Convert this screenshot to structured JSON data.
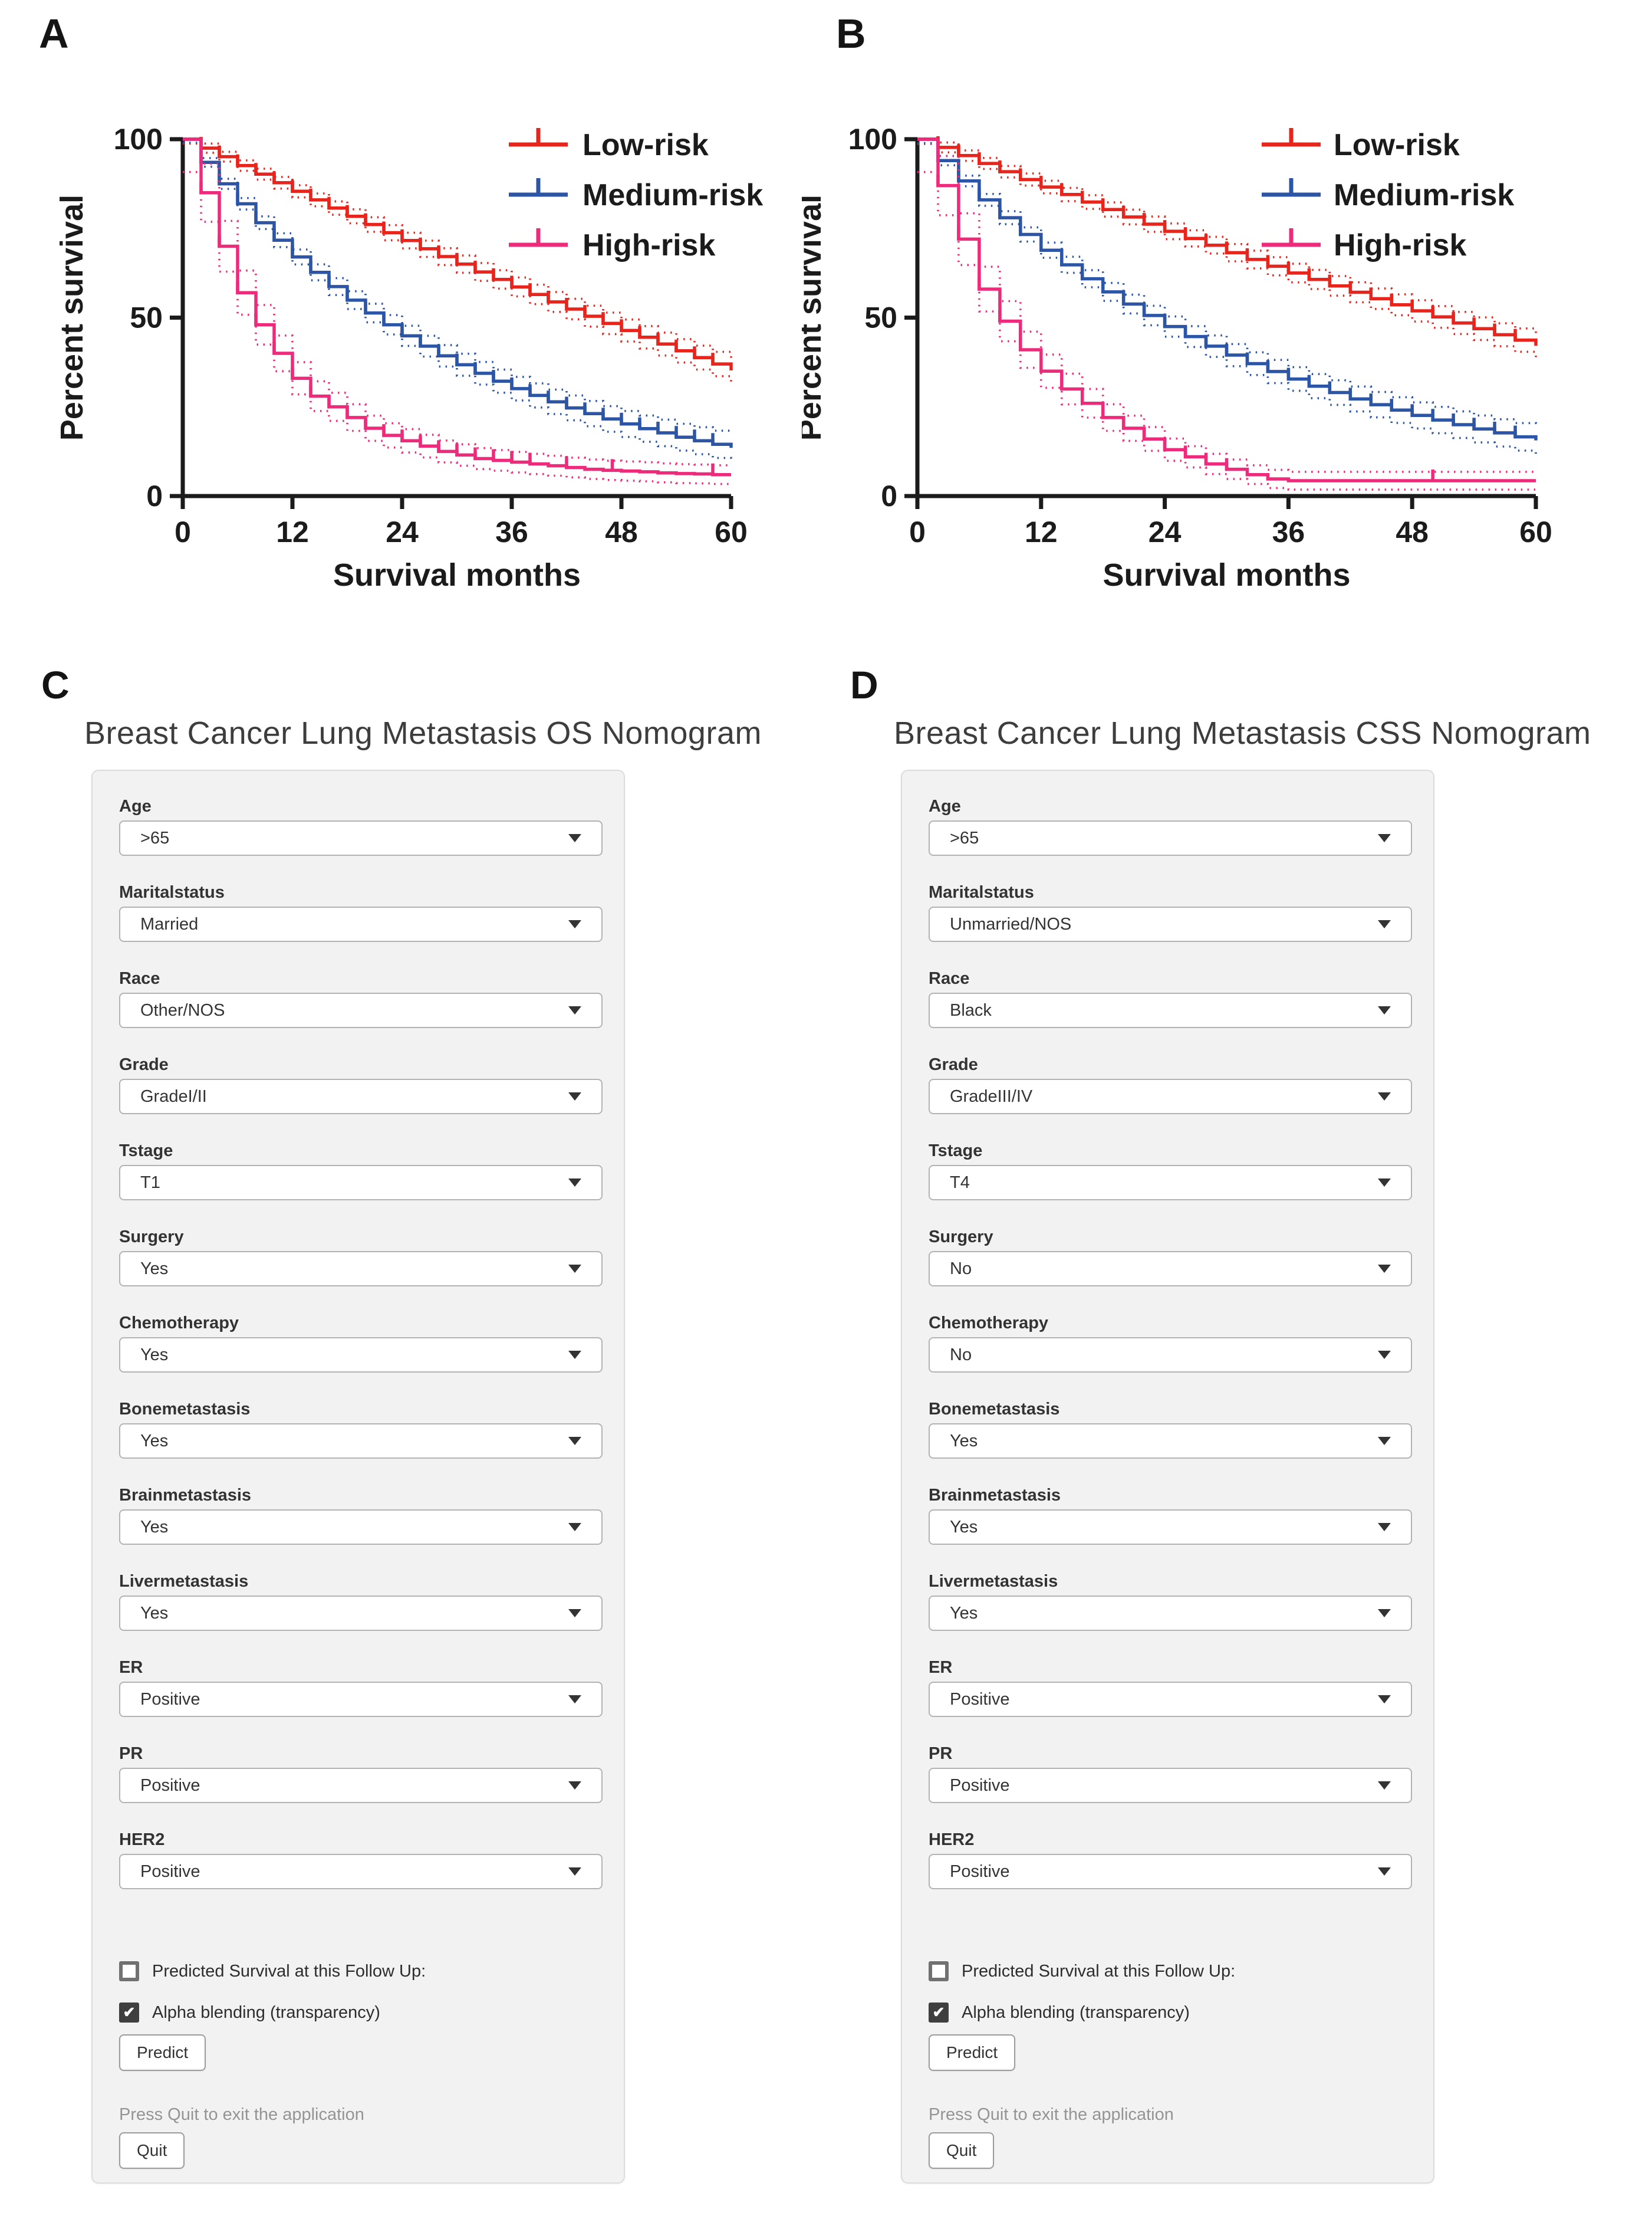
{
  "page": {
    "background": "#ffffff"
  },
  "chart_data": {
    "type": "line",
    "subtype": "kaplan_meier_step_with_ci",
    "charts": [
      {
        "panel_label": "A",
        "xlabel": "Survival months",
        "ylabel": "Percent survival",
        "xlim": [
          0,
          60
        ],
        "ylim": [
          0,
          100
        ],
        "x_ticks": [
          0,
          12,
          24,
          36,
          48,
          60
        ],
        "y_ticks": [
          0,
          50,
          100
        ],
        "grid": false,
        "legend_position": "top-right",
        "months": [
          0,
          2,
          4,
          6,
          8,
          10,
          12,
          14,
          16,
          18,
          20,
          22,
          24,
          26,
          28,
          30,
          32,
          34,
          36,
          38,
          40,
          42,
          44,
          46,
          48,
          50,
          52,
          54,
          56,
          58,
          60
        ],
        "series": [
          {
            "name": "Low-risk",
            "color": "#e7251d",
            "values": [
              100,
              97.5,
              95.1,
              92.6,
              90.2,
              87.8,
              85.4,
              83,
              80.7,
              78.4,
              76.1,
              73.8,
              71.6,
              69.3,
              67.1,
              65,
              62.8,
              60.7,
              58.6,
              56.5,
              54.4,
              52.4,
              50.4,
              48.4,
              46.4,
              44.5,
              42.6,
              40.7,
              38.8,
              37,
              35.2
            ],
            "censor_months": [
              2,
              4,
              6,
              8,
              10,
              12,
              14,
              16,
              18,
              20,
              22,
              24,
              26,
              28,
              30,
              32,
              34,
              36,
              38,
              40,
              42,
              44,
              46,
              48,
              50,
              52,
              54,
              56,
              58
            ],
            "ci_params": {
              "base": 1.2,
              "v_coef": 0,
              "drop_coef": 0.035
            }
          },
          {
            "name": "Medium-risk",
            "color": "#2d55a5",
            "values": [
              100,
              93.5,
              87.5,
              81.9,
              76.6,
              71.7,
              67,
              62.7,
              58.7,
              54.9,
              51.3,
              48,
              44.9,
              42,
              39.3,
              36.8,
              34.4,
              32.2,
              30.1,
              28.2,
              26.4,
              24.7,
              23.1,
              21.6,
              20.2,
              18.9,
              17.7,
              16.5,
              15.5,
              14.5,
              13.5
            ],
            "censor_months": [
              2,
              4,
              6,
              8,
              10,
              12,
              14,
              16,
              18,
              20,
              22,
              24,
              26,
              28,
              30,
              32,
              34,
              36,
              38,
              40,
              42,
              44,
              46,
              48,
              50,
              52,
              54,
              56,
              58
            ],
            "ci_params": {
              "base": 1.0,
              "v_coef": 0,
              "drop_coef": 0.033
            }
          },
          {
            "name": "High-risk",
            "color": "#ee2a7b",
            "values": [
              100,
              85,
              70,
              57,
              48,
              40,
              33,
              28,
              25,
              22,
              19,
              17,
              15.5,
              14,
              12.5,
              11.5,
              10.5,
              10,
              9.5,
              9,
              8.5,
              8,
              7.5,
              7.2,
              7,
              6.8,
              6.5,
              6.3,
              6.2,
              6,
              6
            ],
            "censor_months": [
              2,
              4,
              6,
              8,
              10,
              12,
              14,
              16,
              18,
              20,
              22,
              24,
              26,
              28,
              30,
              32,
              34,
              36,
              38,
              42,
              47,
              58
            ],
            "ci_params": {
              "base": 2.2,
              "v_coef": 0.07,
              "drop_coef": 0
            }
          }
        ]
      },
      {
        "panel_label": "B",
        "xlabel": "Survival months",
        "ylabel": "Percent survival",
        "xlim": [
          0,
          60
        ],
        "ylim": [
          0,
          100
        ],
        "x_ticks": [
          0,
          12,
          24,
          36,
          48,
          60
        ],
        "y_ticks": [
          0,
          50,
          100
        ],
        "grid": false,
        "legend_position": "top-right",
        "months": [
          0,
          2,
          4,
          6,
          8,
          10,
          12,
          14,
          16,
          18,
          20,
          22,
          24,
          26,
          28,
          30,
          32,
          34,
          36,
          38,
          40,
          42,
          44,
          46,
          48,
          50,
          52,
          54,
          56,
          58,
          60
        ],
        "series": [
          {
            "name": "Low-risk",
            "color": "#e7251d",
            "values": [
              100,
              97.7,
              95.4,
              93.2,
              90.9,
              88.7,
              86.6,
              84.5,
              82.4,
              80.3,
              78.2,
              76.2,
              74.2,
              72.2,
              70.3,
              68.2,
              66.3,
              64.4,
              62.5,
              60.7,
              58.9,
              57.1,
              55.3,
              53.6,
              51.9,
              50.2,
              48.5,
              46.9,
              45.2,
              43.7,
              42.1
            ],
            "censor_months": [
              2,
              4,
              6,
              8,
              10,
              12,
              14,
              16,
              18,
              20,
              22,
              24,
              26,
              28,
              30,
              32,
              34,
              36,
              38,
              40,
              42,
              44,
              46,
              48,
              50,
              52,
              54,
              56,
              58
            ],
            "ci_params": {
              "base": 1.3,
              "v_coef": 0,
              "drop_coef": 0.035
            }
          },
          {
            "name": "Medium-risk",
            "color": "#2d55a5",
            "values": [
              100,
              94,
              88.3,
              83,
              78,
              73.3,
              68.9,
              64.8,
              60.9,
              57.2,
              53.8,
              50.6,
              47.5,
              44.7,
              42,
              39.5,
              37.1,
              34.9,
              32.8,
              30.8,
              29,
              27.2,
              25.6,
              24.1,
              22.6,
              21.3,
              20,
              18.8,
              17.7,
              16.6,
              15.6
            ],
            "censor_months": [
              2,
              4,
              6,
              8,
              10,
              12,
              14,
              16,
              18,
              20,
              22,
              24,
              26,
              28,
              30,
              32,
              34,
              36,
              38,
              40,
              42,
              44,
              46,
              48,
              50,
              52,
              54,
              56,
              58
            ],
            "ci_params": {
              "base": 1.1,
              "v_coef": 0,
              "drop_coef": 0.033
            }
          },
          {
            "name": "High-risk",
            "color": "#ee2a7b",
            "values": [
              100,
              87,
              72,
              58,
              49,
              41,
              35,
              30,
              26,
              22,
              19,
              16,
              13,
              11,
              9,
              7.5,
              6,
              4.8,
              4.3,
              4.3,
              4.3,
              4.3,
              4.3,
              4.3,
              4.3,
              4.3,
              4.3,
              4.3,
              4.3,
              4.3,
              4.3
            ],
            "censor_months": [
              2,
              4,
              6,
              8,
              10,
              12,
              14,
              16,
              18,
              20,
              22,
              24,
              26,
              28,
              30,
              50
            ],
            "ci_params": {
              "base": 2.2,
              "v_coef": 0.07,
              "drop_coef": 0
            }
          }
        ]
      }
    ]
  },
  "nomograms": [
    {
      "panel_label": "C",
      "title": "Breast Cancer Lung Metastasis OS Nomogram",
      "fields": [
        {
          "label": "Age",
          "value": ">65"
        },
        {
          "label": "Maritalstatus",
          "value": "Married"
        },
        {
          "label": "Race",
          "value": "Other/NOS"
        },
        {
          "label": "Grade",
          "value": "GradeI/II"
        },
        {
          "label": "Tstage",
          "value": "T1"
        },
        {
          "label": "Surgery",
          "value": "Yes"
        },
        {
          "label": "Chemotherapy",
          "value": "Yes"
        },
        {
          "label": "Bonemetastasis",
          "value": "Yes"
        },
        {
          "label": "Brainmetastasis",
          "value": "Yes"
        },
        {
          "label": "Livermetastasis",
          "value": "Yes"
        },
        {
          "label": "ER",
          "value": "Positive"
        },
        {
          "label": "PR",
          "value": "Positive"
        },
        {
          "label": "HER2",
          "value": "Positive"
        }
      ],
      "checkboxes": [
        {
          "label": "Predicted Survival at this Follow Up:",
          "checked": false
        },
        {
          "label": "Alpha blending (transparency)",
          "checked": true
        }
      ],
      "predict_button_label": "Predict",
      "quit_hint": "Press Quit to exit the application",
      "quit_button_label": "Quit"
    },
    {
      "panel_label": "D",
      "title": "Breast Cancer Lung Metastasis CSS Nomogram",
      "fields": [
        {
          "label": "Age",
          "value": ">65"
        },
        {
          "label": "Maritalstatus",
          "value": "Unmarried/NOS"
        },
        {
          "label": "Race",
          "value": "Black"
        },
        {
          "label": "Grade",
          "value": "GradeIII/IV"
        },
        {
          "label": "Tstage",
          "value": "T4"
        },
        {
          "label": "Surgery",
          "value": "No"
        },
        {
          "label": "Chemotherapy",
          "value": "No"
        },
        {
          "label": "Bonemetastasis",
          "value": "Yes"
        },
        {
          "label": "Brainmetastasis",
          "value": "Yes"
        },
        {
          "label": "Livermetastasis",
          "value": "Yes"
        },
        {
          "label": "ER",
          "value": "Positive"
        },
        {
          "label": "PR",
          "value": "Positive"
        },
        {
          "label": "HER2",
          "value": "Positive"
        }
      ],
      "checkboxes": [
        {
          "label": "Predicted Survival at this Follow Up:",
          "checked": false
        },
        {
          "label": "Alpha blending (transparency)",
          "checked": true
        }
      ],
      "predict_button_label": "Predict",
      "quit_hint": "Press Quit to exit the application",
      "quit_button_label": "Quit"
    }
  ],
  "checkmark_glyph": "✔"
}
